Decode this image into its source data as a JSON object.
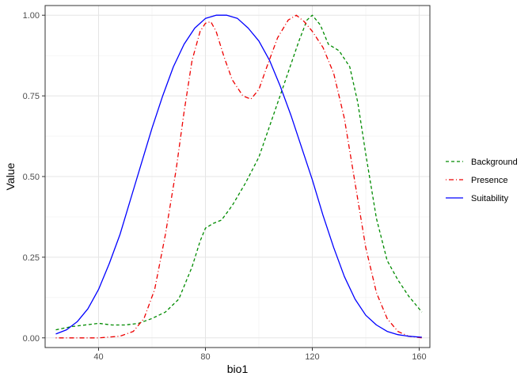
{
  "chart_data": {
    "type": "line",
    "xlabel": "bio1",
    "ylabel": "Value",
    "xlim": [
      20,
      164
    ],
    "ylim": [
      -0.03,
      1.03
    ],
    "x_ticks": [
      40,
      80,
      120,
      160
    ],
    "x_tick_labels": [
      "40",
      "80",
      "120",
      "160"
    ],
    "y_ticks": [
      0,
      0.25,
      0.5,
      0.75,
      1.0
    ],
    "y_tick_labels": [
      "0.00",
      "0.25",
      "0.50",
      "0.75",
      "1.00"
    ],
    "grid": true,
    "legend_position": "right",
    "series": [
      {
        "name": "Background",
        "color": "#008B00",
        "dash": "dashed",
        "x": [
          24,
          30,
          35,
          40,
          45,
          50,
          55,
          60,
          65,
          70,
          75,
          78,
          80,
          83,
          86,
          90,
          95,
          100,
          105,
          110,
          115,
          118,
          120,
          123,
          126,
          130,
          134,
          137,
          140,
          144,
          148,
          152,
          156,
          161
        ],
        "y": [
          0.025,
          0.035,
          0.04,
          0.045,
          0.04,
          0.04,
          0.045,
          0.06,
          0.08,
          0.12,
          0.22,
          0.3,
          0.34,
          0.355,
          0.365,
          0.41,
          0.48,
          0.56,
          0.68,
          0.8,
          0.92,
          0.985,
          1.0,
          0.97,
          0.91,
          0.89,
          0.84,
          0.73,
          0.57,
          0.37,
          0.24,
          0.18,
          0.13,
          0.08
        ]
      },
      {
        "name": "Presence",
        "color": "#EE0000",
        "dash": "dotdash",
        "x": [
          24,
          40,
          48,
          53,
          57,
          61,
          65,
          69,
          72,
          75,
          78,
          80,
          82,
          84,
          87,
          90,
          94,
          97,
          100,
          103,
          107,
          111,
          114,
          117,
          120,
          124,
          128,
          132,
          136,
          140,
          144,
          148,
          152,
          156,
          161
        ],
        "y": [
          0.0,
          0.0,
          0.005,
          0.02,
          0.06,
          0.15,
          0.32,
          0.52,
          0.7,
          0.86,
          0.95,
          0.975,
          0.98,
          0.95,
          0.87,
          0.8,
          0.75,
          0.74,
          0.77,
          0.84,
          0.93,
          0.985,
          1.0,
          0.98,
          0.95,
          0.9,
          0.82,
          0.68,
          0.48,
          0.28,
          0.14,
          0.06,
          0.02,
          0.005,
          0.0
        ]
      },
      {
        "name": "Suitability",
        "color": "#0000FF",
        "dash": "solid",
        "x": [
          24,
          28,
          32,
          36,
          40,
          44,
          48,
          52,
          56,
          60,
          64,
          68,
          72,
          76,
          80,
          84,
          88,
          92,
          96,
          100,
          104,
          108,
          112,
          116,
          120,
          124,
          128,
          132,
          136,
          140,
          144,
          148,
          152,
          156,
          161
        ],
        "y": [
          0.012,
          0.025,
          0.05,
          0.09,
          0.15,
          0.23,
          0.32,
          0.43,
          0.54,
          0.65,
          0.75,
          0.84,
          0.91,
          0.96,
          0.99,
          1.0,
          1.0,
          0.99,
          0.96,
          0.92,
          0.86,
          0.78,
          0.69,
          0.59,
          0.49,
          0.38,
          0.28,
          0.19,
          0.12,
          0.07,
          0.04,
          0.02,
          0.01,
          0.005,
          0.002
        ]
      }
    ]
  }
}
